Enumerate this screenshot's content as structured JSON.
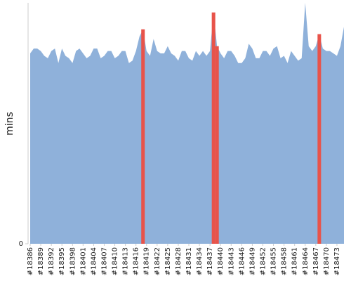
{
  "chart_data": {
    "type": "area",
    "y_label": "mins",
    "categories": [
      "#18386",
      null,
      null,
      "#18389",
      null,
      null,
      "#18392",
      null,
      null,
      "#18395",
      null,
      null,
      "#18398",
      null,
      null,
      "#18401",
      null,
      null,
      "#18404",
      null,
      null,
      "#18407",
      null,
      null,
      "#18410",
      null,
      null,
      "#18413",
      null,
      null,
      "#18416",
      null,
      null,
      "#18419",
      null,
      null,
      "#18422",
      null,
      null,
      "#18425",
      null,
      null,
      "#18428",
      null,
      null,
      "#18431",
      null,
      null,
      "#18434",
      null,
      null,
      "#18437",
      null,
      null,
      "#18440",
      null,
      null,
      "#18443",
      null,
      null,
      "#18446",
      null,
      null,
      "#18449",
      null,
      null,
      "#18452",
      null,
      null,
      "#18455",
      null,
      null,
      "#18458",
      null,
      null,
      "#18461",
      null,
      null,
      "#18464",
      null,
      null,
      "#18467",
      null,
      null,
      "#18470",
      null,
      null,
      "#18473",
      null,
      null
    ],
    "values": [
      79,
      81,
      81,
      80,
      78,
      77,
      80,
      81,
      75,
      81,
      78,
      77,
      75,
      80,
      81,
      79,
      77,
      78,
      81,
      81,
      77,
      78,
      80,
      80,
      77,
      78,
      80,
      80,
      75,
      76,
      80,
      86,
      89,
      80,
      78,
      85,
      80,
      79,
      79,
      82,
      79,
      78,
      76,
      80,
      80,
      77,
      76,
      80,
      78,
      80,
      78,
      80,
      96,
      82,
      79,
      77,
      80,
      80,
      78,
      75,
      75,
      77,
      83,
      81,
      77,
      77,
      80,
      80,
      78,
      81,
      82,
      77,
      78,
      75,
      80,
      78,
      76,
      77,
      100,
      82,
      80,
      82,
      87,
      81,
      80,
      80,
      79,
      78,
      82,
      90
    ],
    "color": "#8fb1da",
    "highlight": {
      "color": "#e8534a",
      "indices": [
        32,
        52,
        53,
        82
      ]
    },
    "ylim": [
      0,
      100
    ],
    "yticks": [
      0
    ]
  }
}
